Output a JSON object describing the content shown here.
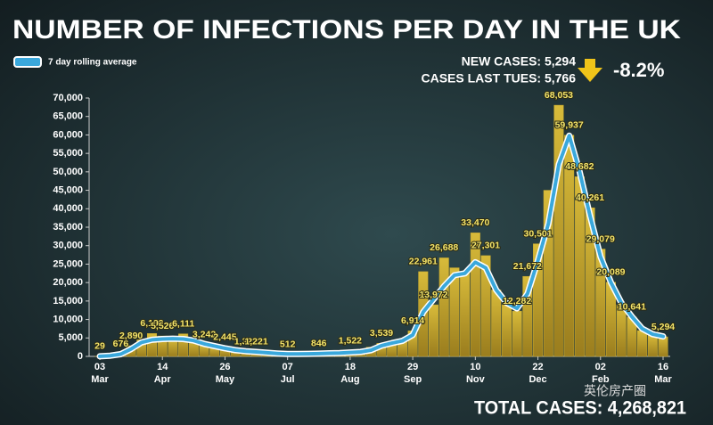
{
  "chart_data": {
    "type": "bar",
    "title": "NUMBER OF INFECTIONS PER DAY IN THE UK",
    "annotations": {
      "new_cases": "NEW CASES: 5,294",
      "last_tues": "CASES LAST TUES: 5,766",
      "change": "-8.2%",
      "total": "TOTAL CASES: 4,268,821",
      "watermark": "英伦房产圈"
    },
    "categories": [
      "03 Mar",
      null,
      null,
      null,
      null,
      null,
      "14 Apr",
      null,
      null,
      null,
      null,
      null,
      "26 May",
      null,
      null,
      null,
      null,
      null,
      "07 Jul",
      null,
      null,
      null,
      null,
      null,
      "18 Aug",
      null,
      null,
      null,
      null,
      null,
      "29 Sep",
      null,
      null,
      null,
      null,
      null,
      "10 Nov",
      null,
      null,
      null,
      null,
      null,
      "22 Dec",
      null,
      null,
      null,
      null,
      null,
      "02 Feb",
      null,
      null,
      null,
      null,
      null,
      "16 Mar"
    ],
    "series": [
      {
        "type": "bar",
        "color": "#c9a92c",
        "values": [
          29,
          400,
          676,
          2890,
          4500,
          6199,
          5526,
          4800,
          6111,
          4500,
          3242,
          2800,
          2445,
          1800,
          1321,
          1221,
          1000,
          800,
          512,
          700,
          750,
          846,
          900,
          1000,
          1522,
          1300,
          2500,
          3539,
          4000,
          4500,
          6914,
          22961,
          13972,
          26688,
          24000,
          23000,
          33470,
          27301,
          18000,
          14000,
          12282,
          21672,
          30501,
          45000,
          68053,
          59937,
          48682,
          40261,
          29079,
          20089,
          14000,
          10641,
          7000,
          5766,
          5294
        ],
        "value_labels": [
          "29",
          null,
          "676",
          "2,890",
          null,
          "6,199",
          "5,526",
          null,
          "6,111",
          null,
          "3,242",
          null,
          "2,445",
          null,
          "1,321",
          "1,221",
          null,
          null,
          "512",
          null,
          null,
          "846",
          null,
          null,
          "1,522",
          null,
          null,
          "3,539",
          null,
          null,
          "6,914",
          "22,961",
          "13,972",
          "26,688",
          null,
          null,
          "33,470",
          "27,301",
          null,
          null,
          "12,282",
          "21,672",
          "30,501",
          null,
          "68,053",
          "59,937",
          "48,682",
          "40,261",
          "29,079",
          "20,089",
          null,
          "10,641",
          null,
          null,
          "5,294"
        ]
      },
      {
        "type": "line",
        "name": "7 day rolling average",
        "color": "#3aa8dc",
        "values": [
          30,
          200,
          600,
          2000,
          3800,
          4500,
          4700,
          4800,
          4700,
          4300,
          3400,
          2800,
          2200,
          1700,
          1400,
          1200,
          1000,
          800,
          650,
          650,
          700,
          750,
          850,
          900,
          1050,
          1200,
          1700,
          2900,
          3600,
          4200,
          5800,
          12000,
          15500,
          19000,
          22000,
          22500,
          25500,
          24000,
          18000,
          14500,
          13000,
          17000,
          26000,
          36000,
          52000,
          59800,
          50000,
          38000,
          27000,
          20000,
          14500,
          10800,
          7500,
          6000,
          5400
        ]
      }
    ],
    "ylim": [
      0,
      70000
    ],
    "yticks": [
      0,
      {
        "value": 5000,
        "label": "5,000"
      },
      {
        "value": 10000,
        "label": "10,000"
      },
      {
        "value": 15000,
        "label": "15,000"
      },
      {
        "value": 20000,
        "label": "20,000"
      },
      {
        "value": 25000,
        "label": "25,000"
      },
      {
        "value": 30000,
        "label": "30,000"
      },
      {
        "value": 35000,
        "label": "35,000"
      },
      {
        "value": 40000,
        "label": "40,000"
      },
      {
        "value": 45000,
        "label": "45,000"
      },
      {
        "value": 50000,
        "label": "50,000"
      },
      {
        "value": 55000,
        "label": "55,000"
      },
      {
        "value": 60000,
        "label": "60,000"
      },
      {
        "value": 65000,
        "label": "65,000"
      },
      {
        "value": 70000,
        "label": "70,000"
      }
    ],
    "grid": false
  }
}
